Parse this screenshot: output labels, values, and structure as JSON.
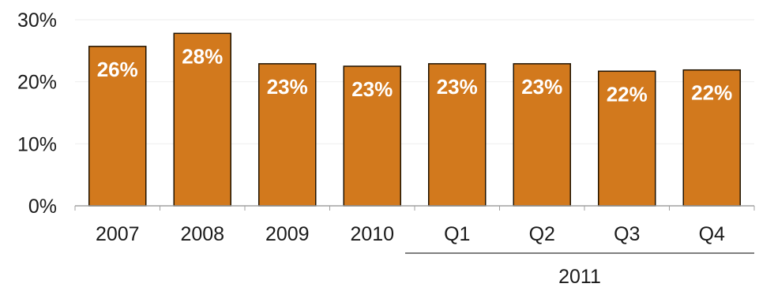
{
  "chart_data": {
    "type": "bar",
    "categories": [
      "2007",
      "2008",
      "2009",
      "2010",
      "Q1",
      "Q2",
      "Q3",
      "Q4"
    ],
    "values": [
      25.7,
      27.8,
      22.9,
      22.5,
      22.9,
      22.9,
      21.7,
      21.9
    ],
    "data_labels": [
      "26%",
      "28%",
      "23%",
      "23%",
      "23%",
      "23%",
      "22%",
      "22%"
    ],
    "category_group": {
      "label": "2011",
      "categories": [
        "Q1",
        "Q2",
        "Q3",
        "Q4"
      ]
    },
    "title": "",
    "xlabel": "",
    "ylabel": "",
    "ylim": [
      0,
      30
    ],
    "yticks": [
      "0%",
      "10%",
      "20%",
      "30%"
    ],
    "grid": true,
    "legend": "none",
    "colors": {
      "bar_fill": "#d2791d",
      "bar_stroke": "#1f1200",
      "grid": "#eeeeee",
      "axis": "#a0a0a0",
      "group_line": "#555555",
      "label_text": "#ffffff"
    }
  }
}
